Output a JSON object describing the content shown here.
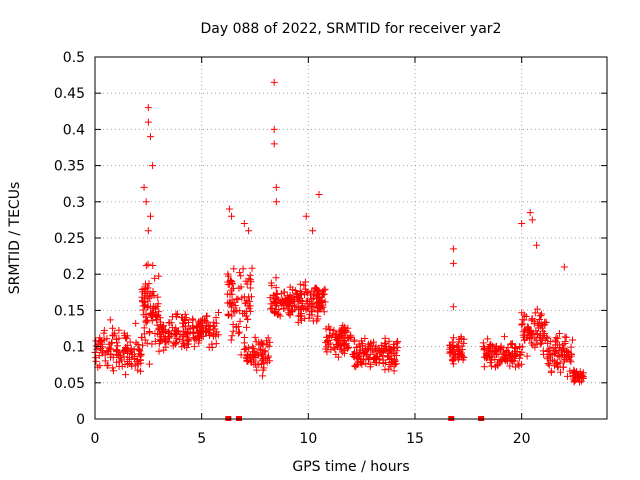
{
  "chart_data": {
    "type": "scatter",
    "title": "Day 088 of 2022, SRMTID for receiver yar2",
    "xlabel": "GPS time / hours",
    "ylabel": "SRMTID / TECUs",
    "xlim": [
      0,
      24
    ],
    "ylim": [
      0,
      0.5
    ],
    "xticks": [
      0,
      5,
      10,
      15,
      20
    ],
    "xtick_labels": [
      "0",
      "5",
      "10",
      "15",
      "20"
    ],
    "yticks": [
      0,
      0.05,
      0.1,
      0.15,
      0.2,
      0.25,
      0.3,
      0.35,
      0.4,
      0.45,
      0.5
    ],
    "ytick_labels": [
      "0",
      "0.05",
      "0.1",
      "0.15",
      "0.2",
      "0.25",
      "0.3",
      "0.35",
      "0.4",
      "0.45",
      "0.5"
    ],
    "grid": true,
    "marker": "+",
    "color": "#ff0000",
    "highlight_points": [
      {
        "x": 2.5,
        "y": 0.43
      },
      {
        "x": 2.5,
        "y": 0.41
      },
      {
        "x": 2.6,
        "y": 0.39
      },
      {
        "x": 2.7,
        "y": 0.35
      },
      {
        "x": 2.3,
        "y": 0.32
      },
      {
        "x": 2.4,
        "y": 0.3
      },
      {
        "x": 2.6,
        "y": 0.28
      },
      {
        "x": 2.5,
        "y": 0.26
      },
      {
        "x": 8.4,
        "y": 0.465
      },
      {
        "x": 8.4,
        "y": 0.4
      },
      {
        "x": 8.4,
        "y": 0.38
      },
      {
        "x": 8.5,
        "y": 0.32
      },
      {
        "x": 8.5,
        "y": 0.3
      },
      {
        "x": 6.3,
        "y": 0.29
      },
      {
        "x": 6.4,
        "y": 0.28
      },
      {
        "x": 7.0,
        "y": 0.27
      },
      {
        "x": 7.2,
        "y": 0.26
      },
      {
        "x": 10.5,
        "y": 0.31
      },
      {
        "x": 9.9,
        "y": 0.28
      },
      {
        "x": 10.2,
        "y": 0.26
      },
      {
        "x": 16.8,
        "y": 0.235
      },
      {
        "x": 16.8,
        "y": 0.215
      },
      {
        "x": 20.0,
        "y": 0.27
      },
      {
        "x": 20.4,
        "y": 0.285
      },
      {
        "x": 20.5,
        "y": 0.275
      },
      {
        "x": 20.7,
        "y": 0.24
      },
      {
        "x": 22.0,
        "y": 0.21
      },
      {
        "x": 16.8,
        "y": 0.155
      }
    ],
    "clusters": [
      {
        "x_start": 0.0,
        "x_end": 2.2,
        "y_center": 0.095,
        "y_spread": 0.05,
        "count": 130
      },
      {
        "x_start": 2.2,
        "x_end": 3.0,
        "y_center": 0.15,
        "y_spread": 0.09,
        "count": 80
      },
      {
        "x_start": 3.0,
        "x_end": 5.8,
        "y_center": 0.12,
        "y_spread": 0.04,
        "count": 170
      },
      {
        "x_start": 6.2,
        "x_end": 7.4,
        "y_center": 0.16,
        "y_spread": 0.08,
        "count": 80
      },
      {
        "x_start": 7.0,
        "x_end": 8.2,
        "y_center": 0.09,
        "y_spread": 0.04,
        "count": 70
      },
      {
        "x_start": 8.2,
        "x_end": 10.8,
        "y_center": 0.16,
        "y_spread": 0.04,
        "count": 190
      },
      {
        "x_start": 10.8,
        "x_end": 12.0,
        "y_center": 0.11,
        "y_spread": 0.035,
        "count": 80
      },
      {
        "x_start": 12.0,
        "x_end": 14.2,
        "y_center": 0.09,
        "y_spread": 0.035,
        "count": 140
      },
      {
        "x_start": 16.6,
        "x_end": 17.3,
        "y_center": 0.095,
        "y_spread": 0.025,
        "count": 50
      },
      {
        "x_start": 18.2,
        "x_end": 20.0,
        "y_center": 0.09,
        "y_spread": 0.03,
        "count": 110
      },
      {
        "x_start": 20.0,
        "x_end": 21.2,
        "y_center": 0.12,
        "y_spread": 0.05,
        "count": 80
      },
      {
        "x_start": 21.2,
        "x_end": 22.4,
        "y_center": 0.09,
        "y_spread": 0.04,
        "count": 80
      },
      {
        "x_start": 22.4,
        "x_end": 22.9,
        "y_center": 0.06,
        "y_spread": 0.015,
        "count": 40
      }
    ],
    "zero_markers": [
      {
        "x": 6.25,
        "y": 0
      },
      {
        "x": 6.75,
        "y": 0
      },
      {
        "x": 16.7,
        "y": 0
      },
      {
        "x": 18.1,
        "y": 0
      }
    ]
  }
}
